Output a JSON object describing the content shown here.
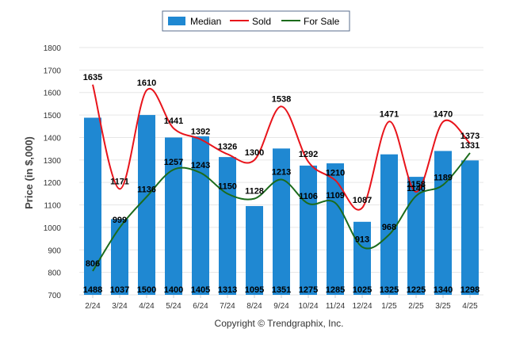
{
  "chart_data": {
    "type": "bar",
    "categories": [
      "2/24",
      "3/24",
      "4/24",
      "5/24",
      "6/24",
      "7/24",
      "8/24",
      "9/24",
      "10/24",
      "11/24",
      "12/24",
      "1/25",
      "2/25",
      "3/25",
      "4/25"
    ],
    "series": [
      {
        "name": "Median",
        "kind": "bar",
        "color": "#1f88d2",
        "values": [
          1488,
          1037,
          1500,
          1400,
          1405,
          1313,
          1095,
          1351,
          1275,
          1285,
          1025,
          1325,
          1225,
          1340,
          1298
        ]
      },
      {
        "name": "Sold",
        "kind": "line",
        "color": "#e8141b",
        "values": [
          1635,
          1171,
          1610,
          1441,
          1392,
          1326,
          1300,
          1538,
          1292,
          1210,
          1087,
          1471,
          1158,
          1470,
          1373
        ]
      },
      {
        "name": "For Sale",
        "kind": "line",
        "color": "#1b6b1b",
        "values": [
          806,
          999,
          1136,
          1257,
          1243,
          1150,
          1128,
          1213,
          1106,
          1109,
          913,
          968,
          1140,
          1189,
          1331
        ]
      }
    ],
    "ylabel": "Price (in $,000)",
    "ylim": [
      700,
      1800
    ],
    "yticks": [
      700,
      800,
      900,
      1000,
      1100,
      1200,
      1300,
      1400,
      1500,
      1600,
      1700,
      1800
    ],
    "grid": true,
    "legend": "top-center"
  },
  "footer": {
    "credit": "Copyright © Trendgraphix, Inc."
  }
}
